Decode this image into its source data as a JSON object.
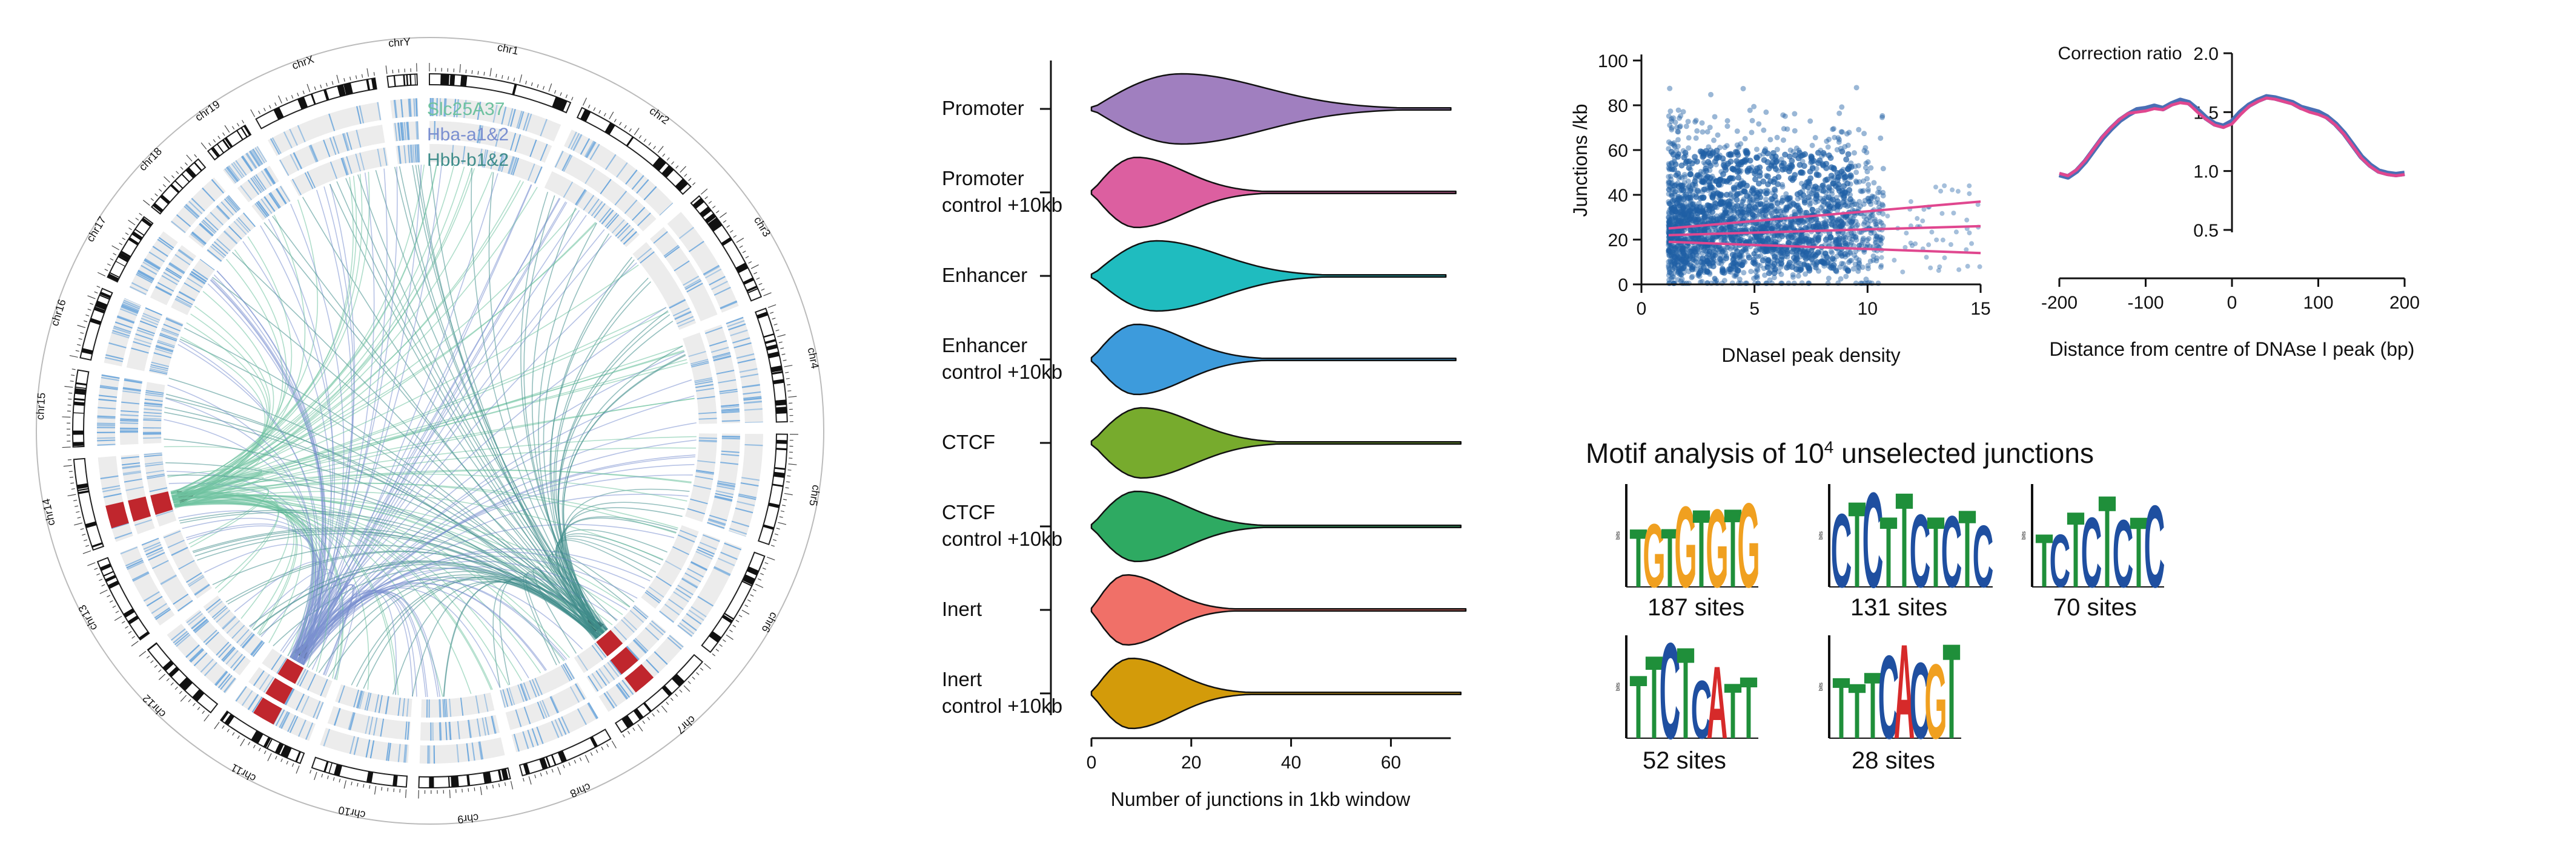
{
  "circos": {
    "chromosomes": [
      "chr1",
      "chr2",
      "chr3",
      "chr4",
      "chr5",
      "chr6",
      "chr7",
      "chr8",
      "chr9",
      "chr10",
      "chr11",
      "chr12",
      "chr13",
      "chr14",
      "chr15",
      "chr16",
      "chr17",
      "chr18",
      "chr19",
      "chrX",
      "chrY"
    ],
    "legend": [
      {
        "label": "Slc25A37",
        "color": "#6fc2a0"
      },
      {
        "label": "Hba-a1&2",
        "color": "#7a8fd0"
      },
      {
        "label": "Hbb-b1&2",
        "color": "#3f8c8a"
      }
    ],
    "colors": {
      "track_bg": "#ececec",
      "track_mark": "#6fa8dc",
      "highlight": "#c0262d"
    }
  },
  "violin": {
    "chart_data": {
      "type": "violin",
      "categories": [
        "Promoter",
        "Promoter control +10kb",
        "Enhancer",
        "Enhancer control +10kb",
        "CTCF",
        "CTCF control +10kb",
        "Inert",
        "Inert control +10kb"
      ],
      "category_lines": [
        [
          "Promoter"
        ],
        [
          "Promoter",
          "control +10kb"
        ],
        [
          "Enhancer"
        ],
        [
          "Enhancer",
          "control +10kb"
        ],
        [
          "CTCF"
        ],
        [
          "CTCF",
          "control +10kb"
        ],
        [
          "Inert"
        ],
        [
          "Inert",
          "control +10kb"
        ]
      ],
      "colors": [
        "#a07fbf",
        "#dc5fa0",
        "#1fbcbf",
        "#3d9bdc",
        "#77ab2d",
        "#2eaa62",
        "#f07068",
        "#d39b0a"
      ],
      "mode": [
        18,
        9,
        13,
        9,
        10,
        9,
        7,
        8
      ],
      "max": [
        72,
        73,
        71,
        73,
        74,
        74,
        75,
        74
      ],
      "xlabel": "Number of junctions in 1kb window",
      "xticks": [
        0,
        20,
        40,
        60
      ],
      "xlim": [
        0,
        75
      ]
    }
  },
  "scatter": {
    "chart_data": {
      "type": "scatter",
      "xlabel": "DNaseI peak density",
      "ylabel": "Junctions /kb",
      "xticks": [
        0,
        5,
        10,
        15
      ],
      "yticks": [
        0,
        20,
        40,
        60,
        80,
        100
      ],
      "xlim": [
        0,
        15
      ],
      "ylim": [
        0,
        100
      ],
      "point_color": "#1f5fa5",
      "fit_color": "#e0478f",
      "fit_lines": [
        {
          "x": [
            1.2,
            15
          ],
          "y": [
            22,
            26
          ]
        },
        {
          "x": [
            1.2,
            15
          ],
          "y": [
            25,
            37
          ]
        },
        {
          "x": [
            1.2,
            15
          ],
          "y": [
            19,
            14
          ]
        }
      ]
    }
  },
  "line": {
    "chart_data": {
      "type": "line",
      "ylabel": "Correction ratio",
      "xlabel": "Distance from centre of DNAse I peak (bp)",
      "xticks": [
        -200,
        -100,
        0,
        100,
        200
      ],
      "yticks": [
        0.5,
        1.0,
        1.5,
        2.0
      ],
      "ytick_labels": [
        "0.5",
        "1.0",
        "1.5",
        "2.0"
      ],
      "xlim": [
        -200,
        200
      ],
      "ylim": [
        0.5,
        2.0
      ],
      "series": [
        {
          "color": "#4a6fb5",
          "x": [
            -200,
            -190,
            -180,
            -170,
            -160,
            -150,
            -140,
            -130,
            -120,
            -110,
            -100,
            -90,
            -80,
            -70,
            -60,
            -50,
            -40,
            -30,
            -20,
            -10,
            0,
            10,
            20,
            30,
            40,
            50,
            60,
            70,
            80,
            90,
            100,
            110,
            120,
            130,
            140,
            150,
            160,
            170,
            180,
            190,
            200
          ],
          "y": [
            0.97,
            0.95,
            1.0,
            1.08,
            1.18,
            1.28,
            1.36,
            1.43,
            1.48,
            1.52,
            1.53,
            1.55,
            1.53,
            1.57,
            1.6,
            1.58,
            1.52,
            1.45,
            1.4,
            1.38,
            1.42,
            1.5,
            1.56,
            1.6,
            1.63,
            1.62,
            1.6,
            1.58,
            1.54,
            1.52,
            1.5,
            1.46,
            1.4,
            1.32,
            1.22,
            1.12,
            1.05,
            1.0,
            0.98,
            0.97,
            0.98
          ]
        },
        {
          "color": "#e0478f",
          "x": [
            -200,
            -190,
            -180,
            -170,
            -160,
            -150,
            -140,
            -130,
            -120,
            -110,
            -100,
            -90,
            -80,
            -70,
            -60,
            -50,
            -40,
            -30,
            -20,
            -10,
            0,
            10,
            20,
            30,
            40,
            50,
            60,
            70,
            80,
            90,
            100,
            110,
            120,
            130,
            140,
            150,
            160,
            170,
            180,
            190,
            200
          ],
          "y": [
            0.98,
            0.96,
            1.01,
            1.09,
            1.19,
            1.29,
            1.37,
            1.44,
            1.49,
            1.5,
            1.51,
            1.53,
            1.52,
            1.56,
            1.58,
            1.57,
            1.5,
            1.44,
            1.39,
            1.37,
            1.4,
            1.48,
            1.55,
            1.59,
            1.62,
            1.61,
            1.59,
            1.57,
            1.53,
            1.5,
            1.48,
            1.45,
            1.39,
            1.31,
            1.21,
            1.11,
            1.04,
            0.99,
            0.97,
            0.96,
            0.97
          ]
        }
      ]
    }
  },
  "motifs": {
    "title_prefix": "Motif analysis of 10",
    "title_sup": "4",
    "title_suffix": " unselected junctions",
    "axis_label": "bits",
    "items": [
      {
        "sequence": "TGTGTGTG",
        "sites": "187 sites"
      },
      {
        "sequence": "CTCTTCTCTC",
        "sites": "131 sites"
      },
      {
        "sequence": "TCTCTCTC",
        "sites": "70 sites"
      },
      {
        "sequence": "TTCTCATT",
        "sites": "52 sites"
      },
      {
        "sequence": "TTTCACGT",
        "sites": "28 sites"
      }
    ],
    "base_colors": {
      "A": "#d62a2a",
      "C": "#1f4fa0",
      "G": "#f0a020",
      "T": "#1f8f3a"
    }
  }
}
